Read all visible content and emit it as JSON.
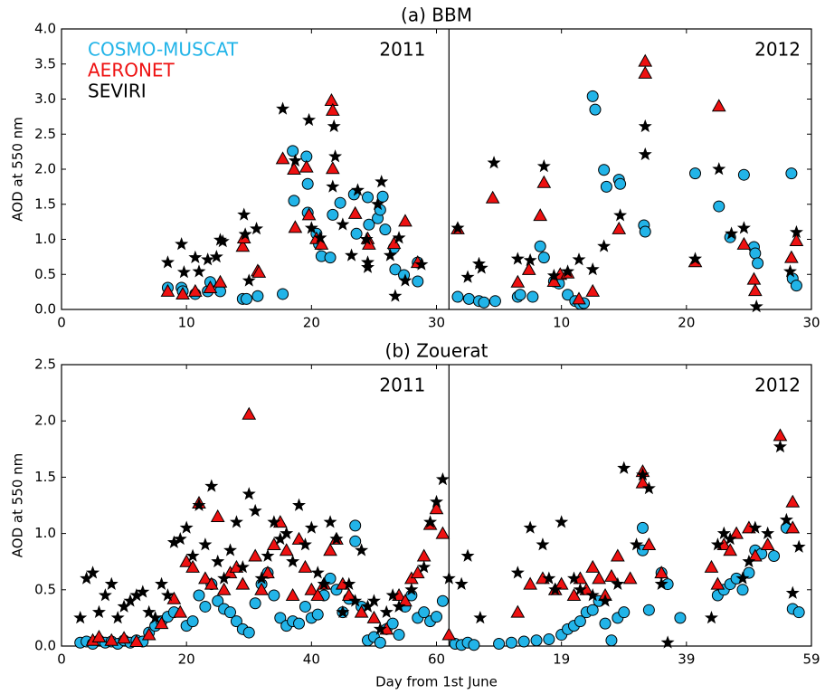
{
  "chart_data": [
    {
      "type": "scatter",
      "title": "(a) BBM",
      "ylabel": "AOD at 550 nm",
      "year_labels": [
        "2011",
        "2012"
      ],
      "divider_x": 31,
      "legend": "upper left",
      "xlim": [
        0,
        60
      ],
      "xticks": [
        0,
        10,
        20,
        30,
        {
          "value": 40,
          "label": "10"
        },
        {
          "value": 50,
          "label": "20"
        },
        {
          "value": 60,
          "label": "30"
        }
      ],
      "ylim": [
        0,
        4
      ],
      "yticks": [
        {
          "value": 0,
          "label": "0.0"
        },
        0.5,
        {
          "value": 1,
          "label": "1.0"
        },
        1.5,
        {
          "value": 2,
          "label": "2.0"
        },
        2.5,
        {
          "value": 3,
          "label": "3.0"
        },
        3.5,
        {
          "value": 4,
          "label": "4.0"
        }
      ],
      "series": [
        {
          "name": "COSMO-MUSCAT",
          "color": "#22b4e8",
          "marker": "circle",
          "x": [
            8.5,
            9.6,
            9.7,
            10.7,
            11.7,
            11.9,
            12.7,
            14.5,
            14.8,
            15.7,
            17.7,
            18.5,
            18.6,
            19.6,
            19.7,
            19.7,
            20.4,
            20.6,
            20.8,
            21.5,
            21.7,
            22.3,
            23.4,
            23.6,
            24.5,
            24.6,
            25.3,
            25.5,
            25.7,
            25.9,
            26.6,
            26.7,
            27.4,
            28.5,
            28.5,
            31.7,
            32.6,
            33.4,
            33.8,
            34.7,
            36.5,
            36.7,
            37.7,
            38.3,
            38.6,
            39.4,
            39.8,
            40.5,
            41.1,
            41.5,
            41.8,
            42.5,
            42.7,
            43.4,
            43.6,
            44.6,
            44.7,
            46.6,
            46.7,
            50.7,
            52.6,
            53.5,
            54.6,
            55.4,
            55.5,
            55.7,
            58.4,
            58.5,
            58.8
          ],
          "values": [
            0.31,
            0.31,
            0.26,
            0.22,
            0.26,
            0.39,
            0.26,
            0.15,
            0.15,
            0.19,
            0.22,
            2.26,
            1.55,
            2.18,
            1.79,
            1.38,
            1.08,
            0.93,
            0.76,
            0.74,
            1.35,
            1.52,
            1.64,
            1.08,
            1.6,
            1.21,
            1.3,
            1.42,
            1.61,
            1.14,
            0.88,
            0.57,
            0.49,
            0.4,
            0.67,
            0.18,
            0.15,
            0.12,
            0.1,
            0.12,
            0.18,
            0.21,
            0.18,
            0.9,
            0.74,
            0.4,
            0.37,
            0.21,
            0.12,
            0.08,
            0.09,
            3.04,
            2.85,
            1.99,
            1.75,
            1.85,
            1.79,
            1.2,
            1.11,
            1.94,
            1.47,
            1.03,
            1.92,
            0.89,
            0.8,
            0.66,
            1.94,
            0.44,
            0.34
          ]
        },
        {
          "name": "AERONET",
          "color": "#ee1111",
          "marker": "triangle",
          "x": [
            8.5,
            9.7,
            10.7,
            11.9,
            12.7,
            14.5,
            14.6,
            15.7,
            15.8,
            17.7,
            18.6,
            18.7,
            19.6,
            19.8,
            20.4,
            20.8,
            21.6,
            21.7,
            21.7,
            23.5,
            24.5,
            24.6,
            26.6,
            27.5,
            28.5,
            31.7,
            34.5,
            36.5,
            37.4,
            38.3,
            38.6,
            39.4,
            39.9,
            40.5,
            41.4,
            42.5,
            44.6,
            46.7,
            46.7,
            50.7,
            52.6,
            54.6,
            55.4,
            55.5,
            58.4,
            58.8
          ],
          "values": [
            0.26,
            0.22,
            0.26,
            0.31,
            0.39,
            0.9,
            1.02,
            0.55,
            0.53,
            2.15,
            2.0,
            1.17,
            2.03,
            1.35,
            1.01,
            0.93,
            2.98,
            2.84,
            2.01,
            1.37,
            1.01,
            0.93,
            0.94,
            1.26,
            0.67,
            1.15,
            1.59,
            0.39,
            0.57,
            1.34,
            1.81,
            0.4,
            0.5,
            0.52,
            0.15,
            0.26,
            1.15,
            3.54,
            3.37,
            0.68,
            2.9,
            0.93,
            0.43,
            0.27,
            0.74,
            0.98
          ]
        },
        {
          "name": "SEVIRI",
          "color": "#000000",
          "marker": "star",
          "x": [
            8.5,
            9.6,
            9.8,
            10.7,
            11.0,
            11.7,
            12.4,
            12.7,
            12.9,
            14.6,
            14.7,
            15.6,
            15.0,
            17.7,
            18.7,
            19.8,
            20.0,
            20.7,
            21.7,
            21.8,
            21.9,
            22.5,
            23.2,
            23.7,
            24.4,
            24.5,
            24.5,
            25.3,
            25.6,
            26.3,
            26.7,
            27.0,
            27.5,
            28.8,
            31.7,
            32.5,
            33.4,
            33.6,
            34.6,
            36.5,
            37.5,
            38.6,
            39.4,
            40.5,
            41.4,
            42.5,
            43.4,
            44.7,
            46.7,
            46.7,
            50.7,
            52.6,
            53.6,
            54.6,
            55.6,
            58.3,
            58.8
          ],
          "values": [
            0.67,
            0.93,
            0.53,
            0.74,
            0.54,
            0.71,
            0.75,
            0.99,
            0.97,
            1.35,
            1.07,
            1.15,
            0.41,
            2.86,
            2.12,
            2.7,
            1.16,
            1.02,
            1.75,
            2.61,
            2.18,
            1.21,
            0.77,
            1.7,
            1.0,
            0.67,
            0.6,
            1.5,
            1.82,
            0.77,
            0.19,
            1.02,
            0.41,
            0.64,
            1.16,
            0.46,
            0.65,
            0.59,
            2.09,
            0.72,
            0.7,
            2.04,
            0.48,
            0.54,
            0.71,
            0.57,
            0.9,
            1.34,
            2.61,
            2.21,
            0.72,
            2.0,
            1.08,
            1.16,
            0.04,
            0.54,
            1.1
          ]
        }
      ]
    },
    {
      "type": "scatter",
      "title": "(b) Zouerat",
      "ylabel": "AOD at 550 nm",
      "xlabel": "Day from 1st June",
      "year_labels": [
        "2011",
        "2012"
      ],
      "divider_x": 62,
      "xlim": [
        0,
        120
      ],
      "xticks": [
        0,
        20,
        40,
        60,
        {
          "value": 80,
          "label": "19"
        },
        {
          "value": 100,
          "label": "39"
        },
        {
          "value": 120,
          "label": "59"
        }
      ],
      "ylim": [
        0,
        2.5
      ],
      "yticks": [
        {
          "value": 0,
          "label": "0.0"
        },
        0.5,
        {
          "value": 1,
          "label": "1.0"
        },
        1.5,
        {
          "value": 2,
          "label": "2.0"
        },
        2.5
      ],
      "series": [
        {
          "color": "#22b4e8",
          "marker": "circle",
          "x": [
            3,
            4,
            5,
            6,
            7,
            8,
            9,
            10,
            11,
            12,
            13,
            14,
            15,
            16,
            17,
            18,
            20,
            21,
            22,
            23,
            24,
            25,
            26,
            27,
            28,
            29,
            30,
            31,
            32,
            33,
            34,
            35,
            36,
            37,
            38,
            39,
            40,
            41,
            42,
            43,
            44,
            45,
            46,
            47,
            47,
            48,
            49,
            50,
            51,
            52,
            53,
            54,
            55,
            56,
            57,
            58,
            59,
            60,
            61,
            63,
            64,
            65,
            66,
            70,
            72,
            74,
            76,
            78,
            80,
            81,
            82,
            83,
            84,
            85,
            86,
            87,
            88,
            89,
            90,
            93,
            93,
            94,
            96,
            97,
            99,
            105,
            106,
            107,
            108,
            109,
            110,
            111,
            112,
            114,
            116,
            117,
            118
          ],
          "values": [
            0.03,
            0.04,
            0.02,
            0.05,
            0.03,
            0.04,
            0.02,
            0.05,
            0.03,
            0.05,
            0.04,
            0.12,
            0.18,
            0.22,
            0.26,
            0.3,
            0.18,
            0.22,
            0.45,
            0.35,
            0.55,
            0.4,
            0.33,
            0.3,
            0.22,
            0.15,
            0.12,
            0.38,
            0.55,
            0.65,
            0.45,
            0.25,
            0.18,
            0.22,
            0.2,
            0.35,
            0.25,
            0.28,
            0.45,
            0.6,
            0.5,
            0.3,
            0.42,
            1.07,
            0.93,
            0.35,
            0.05,
            0.08,
            0.03,
            0.15,
            0.2,
            0.1,
            0.35,
            0.45,
            0.25,
            0.3,
            0.22,
            0.26,
            0.4,
            0.02,
            0.01,
            0.03,
            0.01,
            0.02,
            0.03,
            0.04,
            0.05,
            0.06,
            0.1,
            0.15,
            0.18,
            0.22,
            0.3,
            0.32,
            0.4,
            0.2,
            0.05,
            0.25,
            0.3,
            1.05,
            0.85,
            0.32,
            0.65,
            0.55,
            0.25,
            0.45,
            0.5,
            0.55,
            0.6,
            0.5,
            0.65,
            0.85,
            0.82,
            0.8,
            1.05,
            0.33,
            0.3
          ]
        },
        {
          "color": "#ee1111",
          "marker": "triangle",
          "x": [
            5,
            6,
            8,
            10,
            12,
            14,
            16,
            18,
            19,
            20,
            21,
            22,
            23,
            24,
            25,
            26,
            27,
            28,
            29,
            30,
            31,
            32,
            33,
            34,
            35,
            36,
            37,
            38,
            39,
            40,
            41,
            42,
            43,
            44,
            45,
            46,
            48,
            50,
            52,
            54,
            55,
            56,
            57,
            58,
            59,
            60,
            61,
            62,
            73,
            75,
            77,
            79,
            80,
            82,
            83,
            84,
            85,
            86,
            87,
            88,
            89,
            91,
            93,
            93,
            94,
            96,
            104,
            105,
            106,
            107,
            108,
            110,
            111,
            113,
            115,
            117,
            117
          ],
          "values": [
            0.05,
            0.08,
            0.05,
            0.07,
            0.04,
            0.1,
            0.2,
            0.42,
            0.3,
            0.75,
            0.7,
            1.27,
            0.6,
            0.55,
            1.15,
            0.5,
            0.65,
            0.7,
            0.55,
            2.06,
            0.8,
            0.5,
            0.65,
            0.9,
            1.1,
            0.85,
            0.45,
            0.95,
            0.7,
            0.5,
            0.45,
            0.55,
            0.85,
            0.95,
            0.55,
            0.45,
            0.3,
            0.25,
            0.15,
            0.45,
            0.4,
            0.6,
            0.65,
            0.8,
            1.08,
            1.22,
            1.0,
            0.1,
            0.3,
            0.55,
            0.6,
            0.5,
            0.55,
            0.45,
            0.6,
            0.5,
            0.7,
            0.6,
            0.45,
            0.62,
            0.8,
            0.6,
            1.55,
            1.45,
            0.9,
            0.65,
            0.7,
            0.55,
            0.9,
            0.85,
            1.0,
            1.05,
            0.8,
            0.9,
            1.87,
            1.28,
            1.05
          ]
        },
        {
          "color": "#000000",
          "marker": "star",
          "x": [
            3,
            4,
            5,
            6,
            7,
            8,
            9,
            10,
            11,
            12,
            13,
            14,
            15,
            16,
            17,
            18,
            19,
            20,
            21,
            22,
            23,
            24,
            25,
            26,
            27,
            28,
            29,
            30,
            31,
            32,
            33,
            34,
            35,
            36,
            37,
            38,
            39,
            40,
            41,
            42,
            43,
            44,
            45,
            46,
            47,
            48,
            49,
            50,
            51,
            52,
            53,
            54,
            56,
            58,
            59,
            60,
            61,
            62,
            64,
            65,
            67,
            73,
            75,
            77,
            78,
            79,
            80,
            82,
            83,
            85,
            87,
            89,
            90,
            92,
            93,
            94,
            96,
            97,
            104,
            105,
            106,
            107,
            109,
            110,
            111,
            113,
            115,
            116,
            117,
            118
          ],
          "values": [
            0.25,
            0.6,
            0.65,
            0.3,
            0.45,
            0.55,
            0.25,
            0.35,
            0.4,
            0.45,
            0.48,
            0.3,
            0.25,
            0.55,
            0.45,
            0.92,
            0.95,
            1.05,
            0.8,
            1.25,
            0.9,
            1.42,
            0.75,
            0.6,
            0.85,
            1.1,
            0.7,
            1.35,
            1.2,
            0.6,
            0.8,
            1.1,
            0.95,
            1.0,
            0.75,
            1.25,
            0.9,
            1.05,
            0.65,
            0.55,
            1.1,
            0.95,
            0.3,
            0.55,
            0.4,
            0.85,
            0.35,
            0.4,
            0.15,
            0.3,
            0.45,
            0.35,
            0.5,
            0.7,
            1.1,
            1.28,
            1.48,
            0.6,
            0.55,
            0.8,
            0.25,
            0.65,
            1.05,
            0.9,
            0.6,
            0.5,
            1.1,
            0.6,
            0.5,
            0.45,
            0.4,
            0.55,
            1.58,
            0.9,
            1.52,
            1.4,
            0.55,
            0.03,
            0.25,
            0.9,
            1.0,
            0.95,
            0.6,
            0.75,
            1.05,
            1.0,
            1.77,
            1.12,
            0.47,
            0.88
          ]
        }
      ]
    }
  ]
}
